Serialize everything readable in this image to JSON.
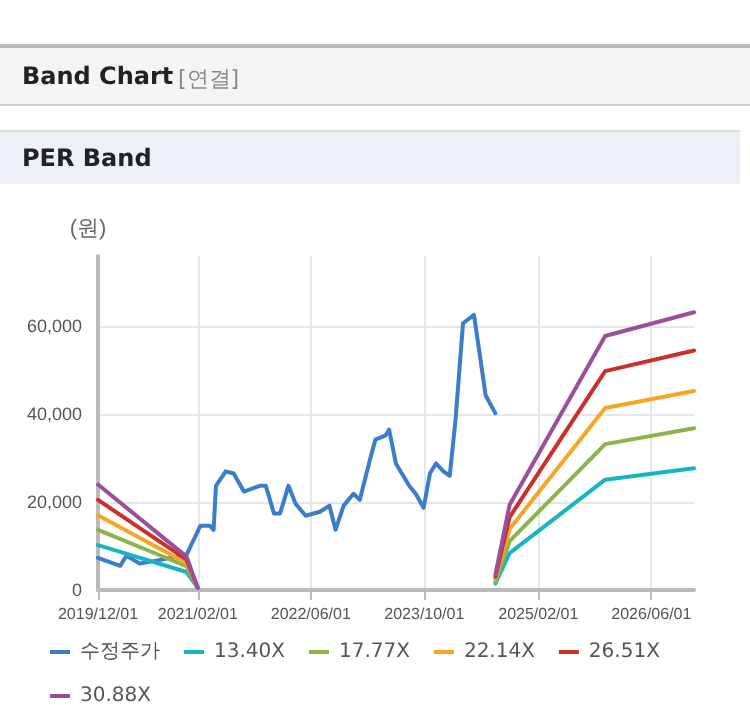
{
  "chart_data": {
    "type": "line",
    "title": "Band Chart",
    "subtitle": "PER Band",
    "annotations": [
      "[연결]"
    ],
    "ylabel": "(원)",
    "xlim": [
      "2019-12-01",
      "2026-12-01"
    ],
    "xticks": [
      {
        "value": "2019-12-01",
        "label": "2019/12/01"
      },
      {
        "value": "2021-02-01",
        "label": "2021/02/01"
      },
      {
        "value": "2022-06-01",
        "label": "2022/06/01"
      },
      {
        "value": "2023-10-01",
        "label": "2023/10/01"
      },
      {
        "value": "2025-02-01",
        "label": "2025/02/01"
      },
      {
        "value": "2026-06-01",
        "label": "2026/06/01"
      }
    ],
    "ylim": [
      0,
      76000
    ],
    "yticks": [
      0,
      {
        "value": 20000,
        "label": "20,000"
      },
      {
        "value": 40000,
        "label": "40,000"
      },
      {
        "value": 60000,
        "label": "60,000"
      }
    ],
    "grid": true,
    "legend": "bottom",
    "marker": "none",
    "line_style": "solid",
    "series": [
      {
        "name": "수정주가",
        "color": "#3a7dc9",
        "x": [
          "2019-12-01",
          "2020-03-05",
          "2020-04-01",
          "2020-05-28",
          "2020-08-20",
          "2020-11-15",
          "2020-12-12",
          "2021-02-12",
          "2021-03-25",
          "2021-04-10",
          "2021-04-20",
          "2021-06-01",
          "2021-07-05",
          "2021-08-18",
          "2021-10-25",
          "2021-11-20",
          "2021-12-25",
          "2022-01-20",
          "2022-02-25",
          "2022-03-28",
          "2022-05-10",
          "2022-07-10",
          "2022-08-20",
          "2022-09-15",
          "2022-10-20",
          "2022-12-01",
          "2022-12-28",
          "2023-02-10",
          "2023-03-05",
          "2023-04-18",
          "2023-05-03",
          "2023-06-01",
          "2023-07-28",
          "2023-08-25",
          "2023-09-28",
          "2023-10-25",
          "2023-11-20",
          "2023-12-22",
          "2024-01-18",
          "2024-02-12",
          "2024-03-15",
          "2024-05-01",
          "2024-05-25",
          "2024-06-20",
          "2024-08-01"
        ],
        "values": [
          7300,
          5500,
          7800,
          6000,
          6800,
          7700,
          7700,
          14600,
          14600,
          13700,
          23700,
          27000,
          26500,
          22400,
          23700,
          23700,
          17400,
          17400,
          23700,
          19600,
          16900,
          17800,
          19200,
          13700,
          19200,
          21900,
          20500,
          29700,
          34200,
          35200,
          36500,
          28800,
          23700,
          21900,
          18700,
          26500,
          28800,
          27000,
          26000,
          38800,
          60700,
          62600,
          53900,
          44300,
          40200
        ]
      },
      {
        "name": "13.40X",
        "color": "#17b5c4",
        "x": [
          "2019-12-01",
          "2020-12-15",
          "2021-02-01",
          "2022-06-01",
          "2024-08-01",
          "2024-10-01",
          "2025-11-15",
          "2026-12-01"
        ],
        "values": [
          10200,
          4100,
          500,
          null,
          1500,
          8400,
          25100,
          27700
        ]
      },
      {
        "name": "17.77X",
        "color": "#8db34a",
        "x": [
          "2019-12-01",
          "2020-12-15",
          "2021-02-01",
          "2022-06-01",
          "2024-08-01",
          "2024-10-01",
          "2025-11-15",
          "2026-12-01"
        ],
        "values": [
          13700,
          5400,
          500,
          null,
          2000,
          11100,
          33200,
          36800
        ]
      },
      {
        "name": "22.14X",
        "color": "#f5a623",
        "x": [
          "2019-12-01",
          "2020-12-15",
          "2021-02-01",
          "2022-06-01",
          "2024-08-01",
          "2024-10-01",
          "2025-11-15",
          "2026-12-01"
        ],
        "values": [
          17000,
          6100,
          500,
          null,
          2500,
          13900,
          41400,
          45300
        ]
      },
      {
        "name": "26.51X",
        "color": "#c9302c",
        "x": [
          "2019-12-01",
          "2020-12-15",
          "2021-02-01",
          "2022-06-01",
          "2024-08-01",
          "2024-10-01",
          "2025-11-15",
          "2026-12-01"
        ],
        "values": [
          20500,
          6900,
          500,
          null,
          3000,
          16600,
          49800,
          54500
        ]
      },
      {
        "name": "30.88X",
        "color": "#9b4f9b",
        "x": [
          "2019-12-01",
          "2020-12-15",
          "2021-02-01",
          "2022-06-01",
          "2024-08-01",
          "2024-10-01",
          "2025-11-15",
          "2026-12-01"
        ],
        "values": [
          24000,
          7600,
          500,
          null,
          3500,
          19400,
          57800,
          63200
        ]
      }
    ]
  }
}
